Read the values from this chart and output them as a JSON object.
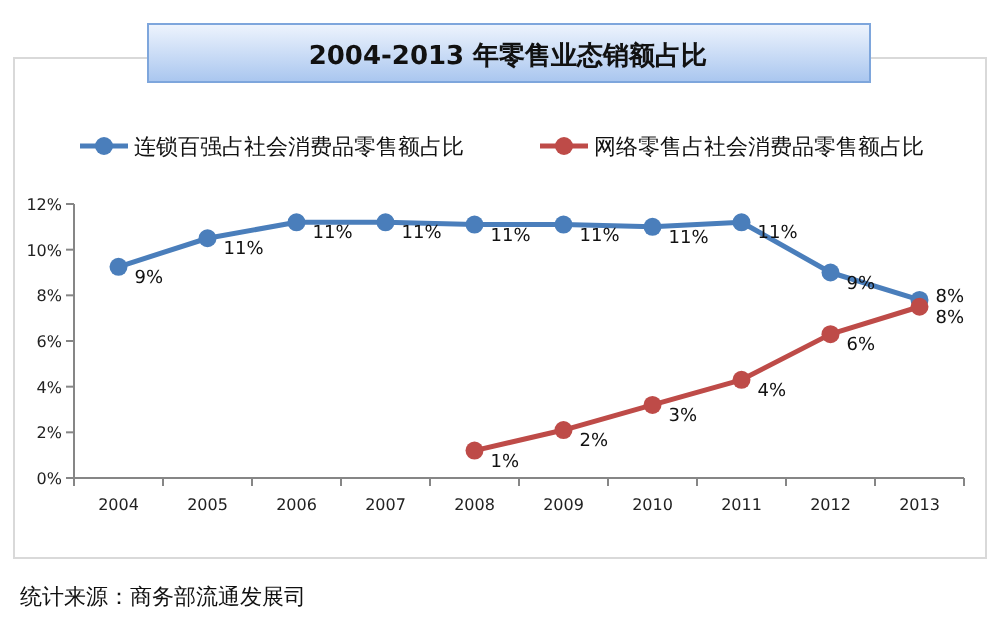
{
  "chart_data": {
    "type": "line",
    "title": "2004-2013 年零售业态销额占比",
    "categories": [
      "2004",
      "2005",
      "2006",
      "2007",
      "2008",
      "2009",
      "2010",
      "2011",
      "2012",
      "2013"
    ],
    "series": [
      {
        "name": "连锁百强占社会消费品零售额占比",
        "color": "#4a7ebb",
        "values": [
          9.25,
          10.5,
          11.2,
          11.2,
          11.1,
          11.1,
          11.0,
          11.2,
          9.0,
          7.8
        ],
        "value_labels": [
          "9%",
          "11%",
          "11%",
          "11%",
          "11%",
          "11%",
          "11%",
          "11%",
          "9%",
          "8%"
        ]
      },
      {
        "name": "网络零售占社会消费品零售额占比",
        "color": "#be4b48",
        "values": [
          null,
          null,
          null,
          null,
          1.2,
          2.1,
          3.2,
          4.3,
          6.3,
          7.5
        ],
        "value_labels": [
          null,
          null,
          null,
          null,
          "1%",
          "2%",
          "3%",
          "4%",
          "6%",
          "8%"
        ]
      }
    ],
    "ylim": [
      0,
      12
    ],
    "yticks": [
      {
        "value": 0,
        "label": "0%"
      },
      {
        "value": 2,
        "label": "2%"
      },
      {
        "value": 4,
        "label": "4%"
      },
      {
        "value": 6,
        "label": "6%"
      },
      {
        "value": 8,
        "label": "8%"
      },
      {
        "value": 10,
        "label": "10%"
      },
      {
        "value": 12,
        "label": "12%"
      }
    ],
    "marker": "circle",
    "line_style": "solid",
    "legend": "top",
    "grid": false,
    "annotations": [
      "统计来源：商务部流通发展司"
    ]
  }
}
